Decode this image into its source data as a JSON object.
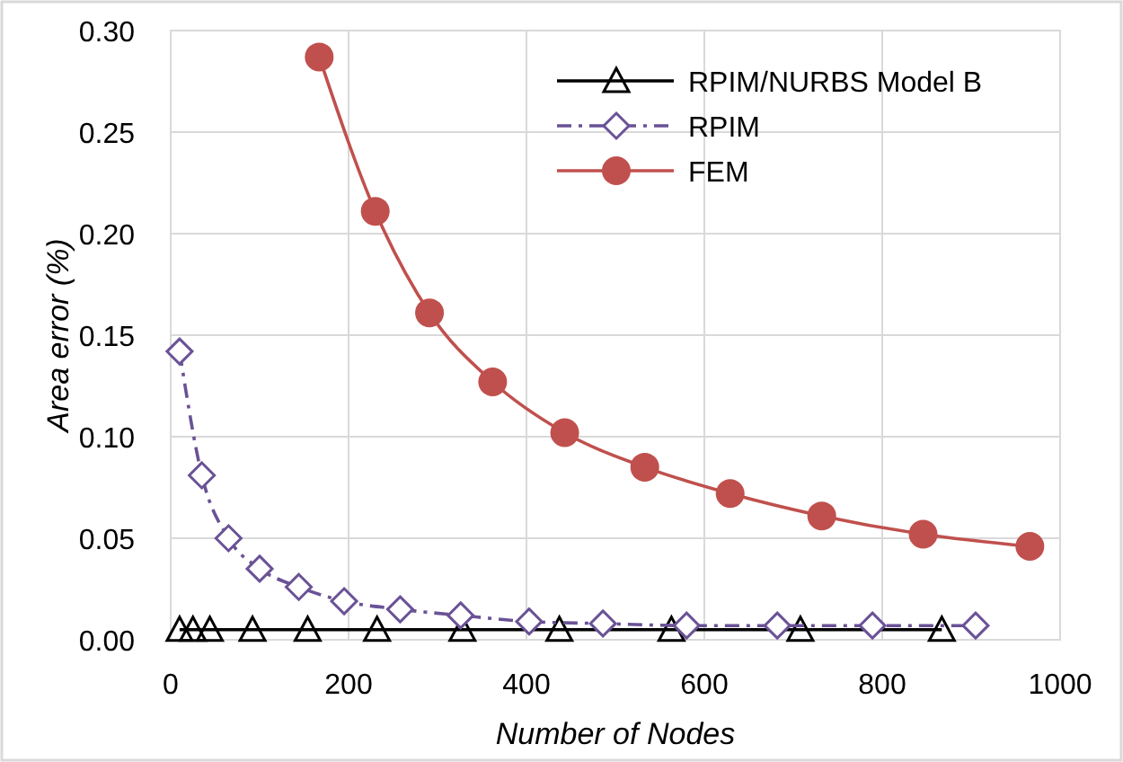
{
  "chart_data": {
    "type": "line",
    "xlabel": "Number of Nodes",
    "ylabel": "Area error (%)",
    "xlim": [
      0,
      1000
    ],
    "xticks": [
      0,
      200,
      400,
      600,
      800,
      1000
    ],
    "ylim": [
      0,
      0.3
    ],
    "yticks": [
      {
        "value": 0,
        "label": "0.00"
      },
      {
        "value": 0.05,
        "label": "0.05"
      },
      {
        "value": 0.1,
        "label": "0.10"
      },
      {
        "value": 0.15,
        "label": "0.15"
      },
      {
        "value": 0.2,
        "label": "0.20"
      },
      {
        "value": 0.25,
        "label": "0.25"
      },
      {
        "value": 0.3,
        "label": "0.30"
      }
    ],
    "grid": true,
    "legend": "top right",
    "series": [
      {
        "name": "RPIM/NURBS Model B",
        "color": "#000000",
        "marker": "triangle",
        "line_style": "solid",
        "x": [
          10,
          25,
          44,
          92,
          154,
          232,
          328,
          437,
          563,
          708,
          867
        ],
        "values": [
          0.005,
          0.005,
          0.005,
          0.005,
          0.005,
          0.005,
          0.005,
          0.005,
          0.005,
          0.005,
          0.005
        ]
      },
      {
        "name": "RPIM",
        "color": "#6a5296",
        "marker": "diamond",
        "line_style": "dashed",
        "x": [
          10,
          35,
          65,
          100,
          144,
          195,
          258,
          326,
          403,
          486,
          580,
          682,
          789,
          905
        ],
        "values": [
          0.142,
          0.081,
          0.05,
          0.035,
          0.026,
          0.019,
          0.015,
          0.012,
          0.009,
          0.008,
          0.007,
          0.007,
          0.007,
          0.007
        ]
      },
      {
        "name": "FEM",
        "color": "#c0504d",
        "marker": "circle",
        "line_style": "solid",
        "x": [
          167,
          230,
          291,
          362,
          443,
          533,
          629,
          732,
          846,
          966
        ],
        "values": [
          0.287,
          0.211,
          0.161,
          0.127,
          0.102,
          0.085,
          0.072,
          0.061,
          0.052,
          0.046
        ]
      }
    ]
  }
}
